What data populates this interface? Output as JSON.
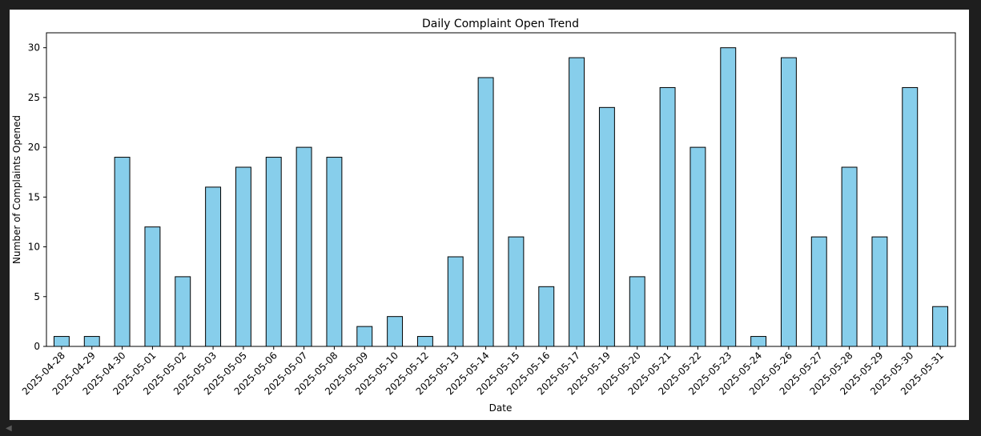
{
  "colors": {
    "page_background": "#1e1e1e",
    "figure_background": "#ffffff",
    "bar_fill": "#87ceeb",
    "bar_edge": "#000000",
    "scroll_arrow": "#5a5a5a"
  },
  "scroll_icon": "chevron-left-icon",
  "chart_data": {
    "type": "bar",
    "title": "Daily Complaint Open Trend",
    "xlabel": "Date",
    "ylabel": "Number of Complaints Opened",
    "categories": [
      "2025-04-28",
      "2025-04-29",
      "2025-04-30",
      "2025-05-01",
      "2025-05-02",
      "2025-05-03",
      "2025-05-05",
      "2025-05-06",
      "2025-05-07",
      "2025-05-08",
      "2025-05-09",
      "2025-05-10",
      "2025-05-12",
      "2025-05-13",
      "2025-05-14",
      "2025-05-15",
      "2025-05-16",
      "2025-05-17",
      "2025-05-19",
      "2025-05-20",
      "2025-05-21",
      "2025-05-22",
      "2025-05-23",
      "2025-05-24",
      "2025-05-26",
      "2025-05-27",
      "2025-05-28",
      "2025-05-29",
      "2025-05-30",
      "2025-05-31"
    ],
    "values": [
      1,
      1,
      19,
      12,
      7,
      16,
      18,
      19,
      20,
      19,
      2,
      3,
      1,
      9,
      27,
      11,
      6,
      29,
      24,
      7,
      26,
      20,
      30,
      1,
      29,
      11,
      18,
      11,
      26,
      4
    ],
    "ylim": [
      0,
      31.5
    ],
    "yticks": [
      0,
      5,
      10,
      15,
      20,
      25,
      30
    ],
    "grid": false,
    "legend": "none"
  }
}
